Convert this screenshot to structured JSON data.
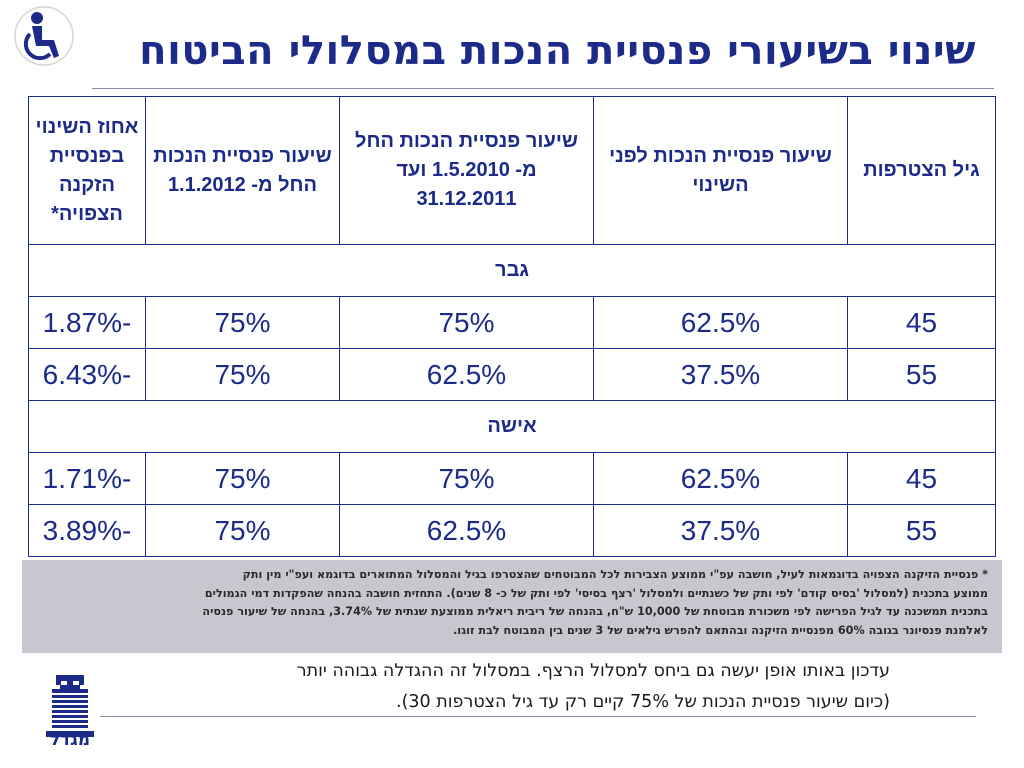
{
  "title": "שינוי בשיעורי פנסיית הנכות במסלולי הביטוח",
  "table": {
    "headers": [
      "גיל הצטרפות",
      "שיעור פנסיית הנכות לפני השינוי",
      "שיעור פנסיית הנכות החל מ- 1.5.2010 ועד 31.12.2011",
      "שיעור פנסיית הנכות החל מ- 1.1.2012",
      "אחוז השינוי בפנסיית הזקנה הצפויה*"
    ],
    "sections": [
      {
        "label": "גבר",
        "rows": [
          [
            "45",
            "62.5%",
            "75%",
            "75%",
            "-1.87%"
          ],
          [
            "55",
            "37.5%",
            "62.5%",
            "75%",
            "-6.43%"
          ]
        ]
      },
      {
        "label": "אישה",
        "rows": [
          [
            "45",
            "62.5%",
            "75%",
            "75%",
            "-1.71%"
          ],
          [
            "55",
            "37.5%",
            "62.5%",
            "75%",
            "-3.89%"
          ]
        ]
      }
    ]
  },
  "footnote": {
    "lines": [
      "* פנסיית הזיקנה הצפויה בדוגמאות לעיל, חושבה עפ\"י ממוצע הצבירות לכל המבוטחים שהצטרפו בגיל והמסלול המתוארים בדוגמא ועפ\"י מין ותק",
      "ממוצע בתכנית (למסלול 'בסיס קודם' לפי ותק של כשנתיים ולמסלול 'רצף בסיסי' לפי ותק של כ- 8 שנים). התחזית חושבה בהנחה שהפקדות דמי הגמולים",
      "בתכנית תמשכנה עד לגיל הפרישה לפי משכורת מבוטחת של 10,000 ש\"ח, בהנחה של ריבית ריאלית ממוצעת שנתית של 3.74%, בהנחה של שיעור פנסיה",
      "לאלמנת פנסיונר בגובה 60% מפנסיית הזיקנה ובהתאם להפרש גילאים של 3 שנים בין המבוטח לבת זוגו."
    ]
  },
  "continued_text": {
    "line1": "עדכון באותו אופן יעשה גם ביחס למסלול הרצף. במסלול זה ההגדלה גבוהה יותר",
    "line2": "(כיום שיעור פנסיית הנכות של 75% קיים רק עד גיל הצטרפות 30)."
  },
  "logo": {
    "text": "מגדל"
  },
  "icons": {
    "accessibility": "wheelchair-icon",
    "logo": "tower-logo-icon"
  },
  "colors": {
    "accent": "#1c2b8a",
    "note_bg": "#c7c7cf"
  }
}
